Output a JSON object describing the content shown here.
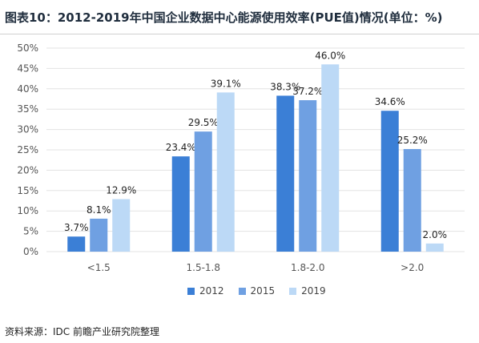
{
  "header": {
    "title": "图表10：2012-2019年中国企业数据中心能源使用效率(PUE值)情况(单位：%)"
  },
  "footer": {
    "source": "资料来源：IDC 前瞻产业研究院整理"
  },
  "colors": {
    "s2012": "#3b7fd6",
    "s2015": "#6fa0e2",
    "s2019": "#bcd9f6",
    "grid": "#e3e3e3",
    "axis_text": "#555555"
  },
  "chart_data": {
    "type": "bar",
    "title": "图表10：2012-2019年中国企业数据中心能源使用效率(PUE值)情况(单位：%)",
    "categories": [
      "<1.5",
      "1.5-1.8",
      "1.8-2.0",
      ">2.0"
    ],
    "series": [
      {
        "name": "2012",
        "values": [
          3.7,
          23.4,
          38.3,
          34.6
        ],
        "labels": [
          "3.7%",
          "23.4%",
          "38.3%",
          "34.6%"
        ]
      },
      {
        "name": "2015",
        "values": [
          8.1,
          29.5,
          37.2,
          25.2
        ],
        "labels": [
          "8.1%",
          "29.5%",
          "37.2%",
          "25.2%"
        ]
      },
      {
        "name": "2019",
        "values": [
          12.9,
          39.1,
          46.0,
          2.0
        ],
        "labels": [
          "12.9%",
          "39.1%",
          "46.0%",
          "2.0%"
        ]
      }
    ],
    "ylim": [
      0,
      50
    ],
    "yticks": [
      0,
      5,
      10,
      15,
      20,
      25,
      30,
      35,
      40,
      45,
      50
    ],
    "ytick_labels": [
      "0%",
      "5%",
      "10%",
      "15%",
      "20%",
      "25%",
      "30%",
      "35%",
      "40%",
      "45%",
      "50%"
    ],
    "grid": true,
    "legend_position": "bottom"
  }
}
